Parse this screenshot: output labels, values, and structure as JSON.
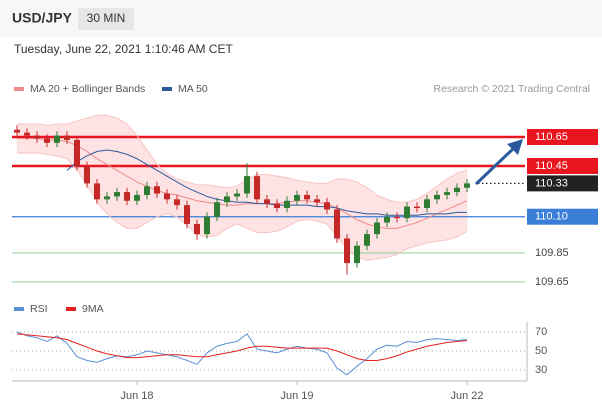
{
  "header": {
    "symbol": "USD/JPY",
    "interval": "30 MIN",
    "timestamp": "Tuesday, June 22, 2021 1:10:46 AM CET",
    "credit": "Research © 2021 Trading Central"
  },
  "chart_data": [
    {
      "type": "candlestick",
      "categories": [
        null,
        null,
        null,
        null,
        null,
        null,
        null,
        null,
        null,
        null,
        null,
        null,
        "Jun 18",
        null,
        null,
        null,
        null,
        null,
        null,
        null,
        null,
        null,
        null,
        null,
        null,
        null,
        null,
        null,
        "Jun 19",
        null,
        null,
        null,
        null,
        null,
        null,
        null,
        null,
        null,
        null,
        null,
        null,
        null,
        null,
        null,
        null,
        "Jun 22"
      ],
      "open": [
        110.7,
        110.68,
        110.66,
        110.64,
        110.61,
        110.66,
        110.63,
        110.45,
        110.33,
        110.22,
        110.24,
        110.27,
        110.21,
        110.25,
        110.31,
        110.26,
        110.22,
        110.18,
        110.05,
        109.98,
        110.1,
        110.2,
        110.24,
        110.26,
        110.38,
        110.22,
        110.19,
        110.16,
        110.21,
        110.25,
        110.22,
        110.2,
        110.15,
        109.95,
        109.78,
        109.9,
        109.98,
        110.06,
        110.1,
        110.09,
        110.17,
        110.16,
        110.22,
        110.25,
        110.27,
        110.3
      ],
      "high": [
        110.73,
        110.71,
        110.69,
        110.67,
        110.69,
        110.69,
        110.66,
        110.48,
        110.36,
        110.27,
        110.3,
        110.3,
        110.28,
        110.34,
        110.34,
        110.29,
        110.25,
        110.21,
        110.08,
        110.13,
        110.23,
        110.27,
        110.29,
        110.47,
        110.41,
        110.25,
        110.22,
        110.24,
        110.28,
        110.28,
        110.25,
        110.23,
        110.18,
        109.98,
        109.93,
        110.01,
        110.09,
        110.13,
        110.13,
        110.2,
        110.2,
        110.25,
        110.28,
        110.3,
        110.33,
        110.36
      ],
      "low": [
        110.65,
        110.63,
        110.61,
        110.58,
        110.58,
        110.6,
        110.42,
        110.3,
        110.19,
        110.19,
        110.21,
        110.18,
        110.18,
        110.22,
        110.23,
        110.19,
        110.15,
        110.02,
        109.94,
        109.95,
        110.07,
        110.17,
        110.21,
        110.23,
        110.19,
        110.16,
        110.13,
        110.13,
        110.18,
        110.19,
        110.17,
        110.12,
        109.92,
        109.7,
        109.75,
        109.87,
        109.95,
        110.03,
        110.06,
        110.06,
        110.13,
        110.13,
        110.19,
        110.22,
        110.24,
        110.27
      ],
      "close": [
        110.68,
        110.66,
        110.64,
        110.61,
        110.66,
        110.63,
        110.45,
        110.33,
        110.22,
        110.24,
        110.27,
        110.21,
        110.25,
        110.31,
        110.26,
        110.22,
        110.18,
        110.05,
        109.98,
        110.1,
        110.2,
        110.24,
        110.26,
        110.38,
        110.22,
        110.19,
        110.16,
        110.21,
        110.25,
        110.22,
        110.2,
        110.15,
        109.95,
        109.78,
        109.9,
        109.98,
        110.06,
        110.1,
        110.09,
        110.17,
        110.16,
        110.22,
        110.25,
        110.27,
        110.3,
        110.33
      ],
      "up_color": "#2e7d32",
      "down_color": "#c62828",
      "series": [
        {
          "name": "MA 20 + Bollinger Bands",
          "color": "#f08a8a",
          "band_color": "#fde3e3",
          "values": [
            110.64,
            110.64,
            110.64,
            110.63,
            110.63,
            110.62,
            110.59,
            110.55,
            110.5,
            110.46,
            110.42,
            110.38,
            110.34,
            110.31,
            110.28,
            110.26,
            110.25,
            110.23,
            110.21,
            110.2,
            110.19,
            110.18,
            110.18,
            110.19,
            110.19,
            110.19,
            110.19,
            110.2,
            110.21,
            110.21,
            110.2,
            110.19,
            110.16,
            110.12,
            110.08,
            110.05,
            110.03,
            110.02,
            110.02,
            110.04,
            110.06,
            110.09,
            110.12,
            110.15,
            110.18,
            110.21
          ],
          "upper": [
            110.74,
            110.74,
            110.74,
            110.73,
            110.74,
            110.74,
            110.76,
            110.78,
            110.8,
            110.8,
            110.78,
            110.74,
            110.66,
            110.56,
            110.46,
            110.4,
            110.36,
            110.34,
            110.32,
            110.32,
            110.31,
            110.3,
            110.31,
            110.36,
            110.39,
            110.39,
            110.38,
            110.37,
            110.35,
            110.34,
            110.33,
            110.33,
            110.36,
            110.36,
            110.34,
            110.3,
            110.25,
            110.22,
            110.2,
            110.2,
            110.22,
            110.26,
            110.31,
            110.36,
            110.4,
            110.42
          ],
          "lower": [
            110.54,
            110.54,
            110.54,
            110.53,
            110.52,
            110.5,
            110.42,
            110.32,
            110.2,
            110.12,
            110.06,
            110.02,
            110.02,
            110.06,
            110.1,
            110.12,
            110.1,
            110.04,
            109.98,
            109.96,
            109.97,
            110.02,
            110.05,
            110.02,
            109.99,
            109.99,
            110.0,
            110.03,
            110.07,
            110.08,
            110.07,
            110.05,
            109.96,
            109.88,
            109.82,
            109.8,
            109.81,
            109.82,
            109.84,
            109.88,
            109.9,
            109.92,
            109.93,
            109.94,
            109.96,
            110.0
          ]
        },
        {
          "name": "MA 50",
          "color": "#2a5a9c",
          "values": [
            null,
            null,
            null,
            null,
            null,
            110.42,
            110.48,
            110.52,
            110.55,
            110.56,
            110.55,
            110.53,
            110.5,
            110.46,
            110.42,
            110.38,
            110.34,
            110.3,
            110.27,
            110.24,
            110.22,
            110.21,
            110.2,
            110.2,
            110.19,
            110.19,
            110.18,
            110.18,
            110.18,
            110.18,
            110.17,
            110.17,
            110.16,
            110.14,
            110.13,
            110.12,
            110.12,
            110.11,
            110.11,
            110.11,
            110.11,
            110.12,
            110.12,
            110.12,
            110.13,
            110.13
          ]
        }
      ],
      "levels": [
        {
          "value": 110.65,
          "color": "#e8141e",
          "boxed": true,
          "style": "solid"
        },
        {
          "value": 110.45,
          "color": "#e8141e",
          "boxed": true,
          "style": "solid"
        },
        {
          "value": 110.33,
          "color": "#222222",
          "boxed": true,
          "style": "dotted"
        },
        {
          "value": 110.1,
          "label": "110.10",
          "color": "#3a7ed8",
          "boxed": true,
          "style": "solid"
        },
        {
          "value": 109.85,
          "color": "#9ed49e",
          "boxed": false,
          "style": "solid"
        },
        {
          "value": 109.65,
          "color": "#9ed49e",
          "boxed": false,
          "style": "solid"
        }
      ],
      "ylim": [
        109.56,
        110.75
      ]
    },
    {
      "type": "line",
      "series": [
        {
          "name": "RSI",
          "color": "#5a8fd6",
          "values": [
            70,
            66,
            64,
            60,
            66,
            58,
            44,
            40,
            38,
            42,
            45,
            44,
            46,
            50,
            48,
            46,
            44,
            40,
            36,
            48,
            55,
            58,
            60,
            68,
            52,
            50,
            48,
            52,
            55,
            53,
            52,
            48,
            32,
            25,
            34,
            42,
            52,
            56,
            55,
            60,
            59,
            62,
            63,
            62,
            61,
            62
          ]
        },
        {
          "name": "9MA",
          "color": "#e62020",
          "values": [
            68,
            67,
            66,
            65,
            64,
            62,
            58,
            54,
            50,
            47,
            45,
            43,
            43,
            44,
            45,
            46,
            46,
            45,
            44,
            44,
            46,
            48,
            50,
            53,
            55,
            55,
            54,
            53,
            53,
            53,
            53,
            53,
            50,
            46,
            42,
            40,
            40,
            42,
            45,
            49,
            52,
            55,
            57,
            59,
            60,
            61
          ]
        }
      ],
      "ylim": [
        20,
        82
      ],
      "yticks": [
        30,
        50,
        70
      ],
      "grid": true
    }
  ]
}
